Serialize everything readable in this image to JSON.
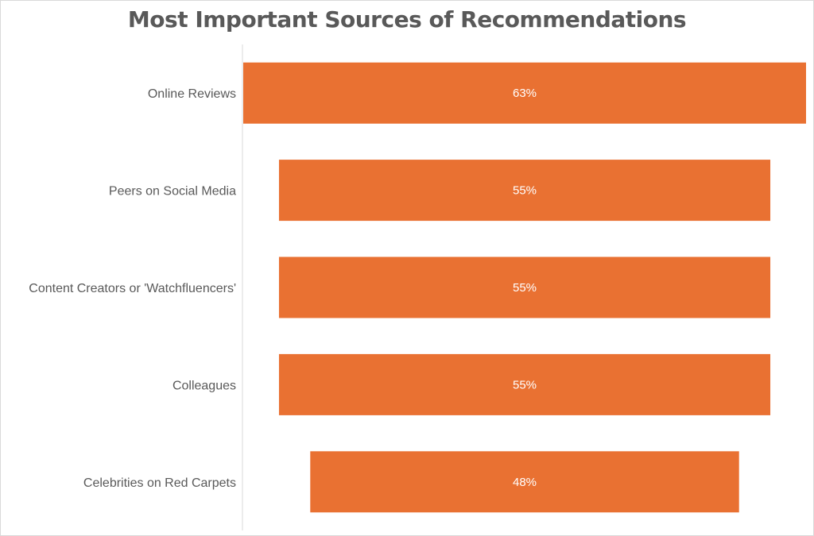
{
  "chart_data": {
    "type": "bar",
    "orientation": "horizontal",
    "layout": "centered-funnel",
    "title": "Most Important Sources of Recommendations",
    "categories": [
      "Online Reviews",
      "Peers on Social Media",
      "Content Creators or 'Watchfluencers'",
      "Colleagues",
      "Celebrities on Red Carpets"
    ],
    "values": [
      63,
      55,
      55,
      55,
      48
    ],
    "data_labels": [
      "63%",
      "55%",
      "55%",
      "55%",
      "48%"
    ],
    "unit": "%",
    "bar_color": "#E97132",
    "grid": false,
    "legend": "none"
  }
}
